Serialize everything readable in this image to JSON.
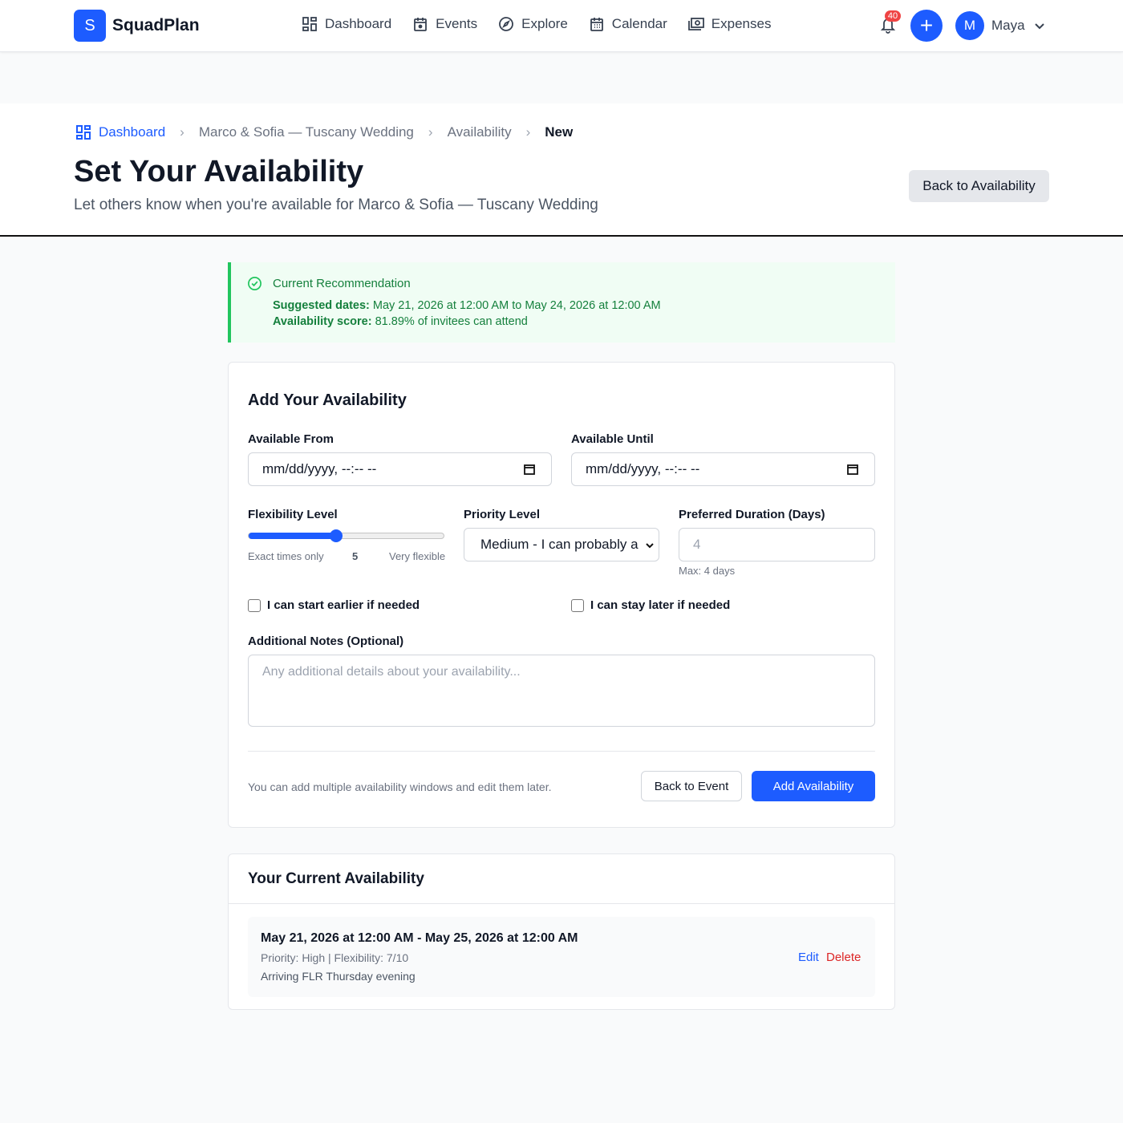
{
  "nav": {
    "logo_letter": "S",
    "brand": "SquadPlan",
    "links": [
      {
        "label": "Dashboard",
        "icon": "dashboard-icon"
      },
      {
        "label": "Events",
        "icon": "events-icon"
      },
      {
        "label": "Explore",
        "icon": "compass-icon"
      },
      {
        "label": "Calendar",
        "icon": "calendar-icon"
      },
      {
        "label": "Expenses",
        "icon": "expenses-icon"
      }
    ],
    "notification_count": "40",
    "create_label": "+",
    "user_initial": "M",
    "user_name": "Maya"
  },
  "breadcrumb": [
    "Dashboard",
    "Marco & Sofia — Tuscany Wedding",
    "Availability",
    "New"
  ],
  "header": {
    "title": "Set Your Availability",
    "subtitle": "Let others know when you're available for Marco & Sofia — Tuscany Wedding",
    "back_button": "Back to Availability"
  },
  "recommendation": {
    "title": "Current Recommendation",
    "dates_label": "Suggested dates:",
    "dates_value": "May 21, 2026 at 12:00 AM to May 24, 2026 at 12:00 AM",
    "score_label": "Availability score:",
    "score_value": "81.89% of invitees can attend"
  },
  "form": {
    "title": "Add Your Availability",
    "from_label": "Available From",
    "from_value": "mm/dd/yyyy, --:-- --",
    "until_label": "Available Until",
    "until_value": "mm/dd/yyyy, --:-- --",
    "flex_label": "Flexibility Level",
    "flex_min": "Exact times only",
    "flex_value": "5",
    "flex_max": "Very flexible",
    "flex_range": [
      1,
      10
    ],
    "priority_label": "Priority Level",
    "priority_value": "Medium - I can probably a",
    "duration_label": "Preferred Duration (Days)",
    "duration_placeholder": "4",
    "duration_hint": "Max: 4 days",
    "earlier_label": "I can start earlier if needed",
    "later_label": "I can stay later if needed",
    "notes_label": "Additional Notes (Optional)",
    "notes_placeholder": "Any additional details about your availability...",
    "footer_hint": "You can add multiple availability windows and edit them later.",
    "back_event": "Back to Event",
    "submit": "Add Availability"
  },
  "current": {
    "title": "Your Current Availability",
    "items": [
      {
        "range": "May 21, 2026 at 12:00 AM - May 25, 2026 at 12:00 AM",
        "meta": "Priority: High | Flexibility: 7/10",
        "note": "Arriving FLR Thursday evening",
        "edit": "Edit",
        "delete": "Delete"
      }
    ]
  },
  "colors": {
    "primary": "#1d5cff",
    "success": "#15803d",
    "danger": "#dc2626"
  }
}
